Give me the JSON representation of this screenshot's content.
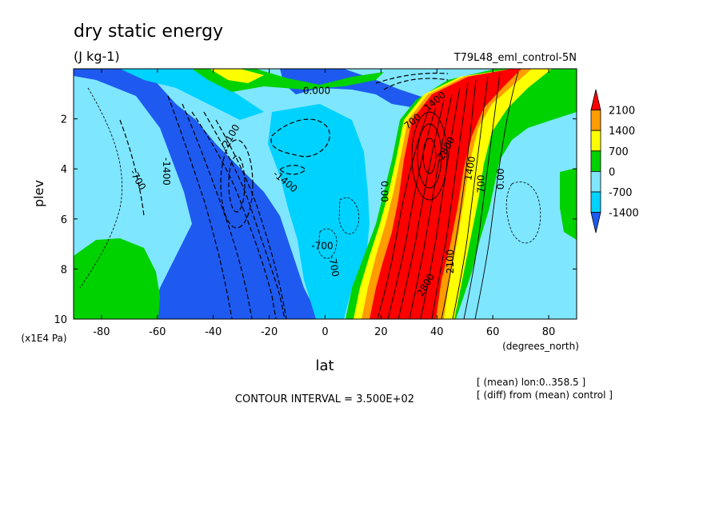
{
  "chart_data": {
    "type": "heatmap",
    "title": "dry static energy",
    "units": "(J kg-1)",
    "experiment": "T79L48_eml_control-5N",
    "xlabel": "lat",
    "x_units": "(degrees_north)",
    "ylabel": "plev",
    "y_units": "(x1E4 Pa)",
    "xlim": [
      -90,
      90
    ],
    "ylim": [
      10,
      0
    ],
    "y_reversed": true,
    "x_ticks": [
      -80,
      -60,
      -40,
      -20,
      0,
      20,
      40,
      60,
      80
    ],
    "x_tick_labels": [
      "-80",
      "-60",
      "-40",
      "-20",
      "0",
      "20",
      "40",
      "60",
      "80"
    ],
    "y_ticks": [
      2,
      4,
      6,
      8,
      10
    ],
    "y_tick_labels": [
      "2",
      "4",
      "6",
      "8",
      "10"
    ],
    "colorbar": {
      "labels": [
        "2100",
        "1400",
        "700",
        "0",
        "-700",
        "-1400"
      ],
      "levels": [
        -1400,
        -700,
        0,
        700,
        1400,
        2100
      ],
      "colors": [
        "#1e5af0",
        "#00d2ff",
        "#7fe6ff",
        "#00d200",
        "#ffff00",
        "#ff9c00",
        "#ff0000"
      ]
    },
    "contour_interval_text": "CONTOUR INTERVAL = 3.500E+02",
    "notes": [
      "[ (mean) lon:0..358.5 ]",
      "[ (diff) from (mean) control ]"
    ],
    "contour_labels": [
      "0.000",
      "-2100",
      "-1400",
      "-700",
      "-1400",
      "-700",
      "-700",
      "0.00",
      "700",
      "1400",
      "2100",
      "-2800",
      "2800",
      "1400",
      "700",
      "0.00"
    ],
    "grid": false,
    "legend_position": "right"
  }
}
